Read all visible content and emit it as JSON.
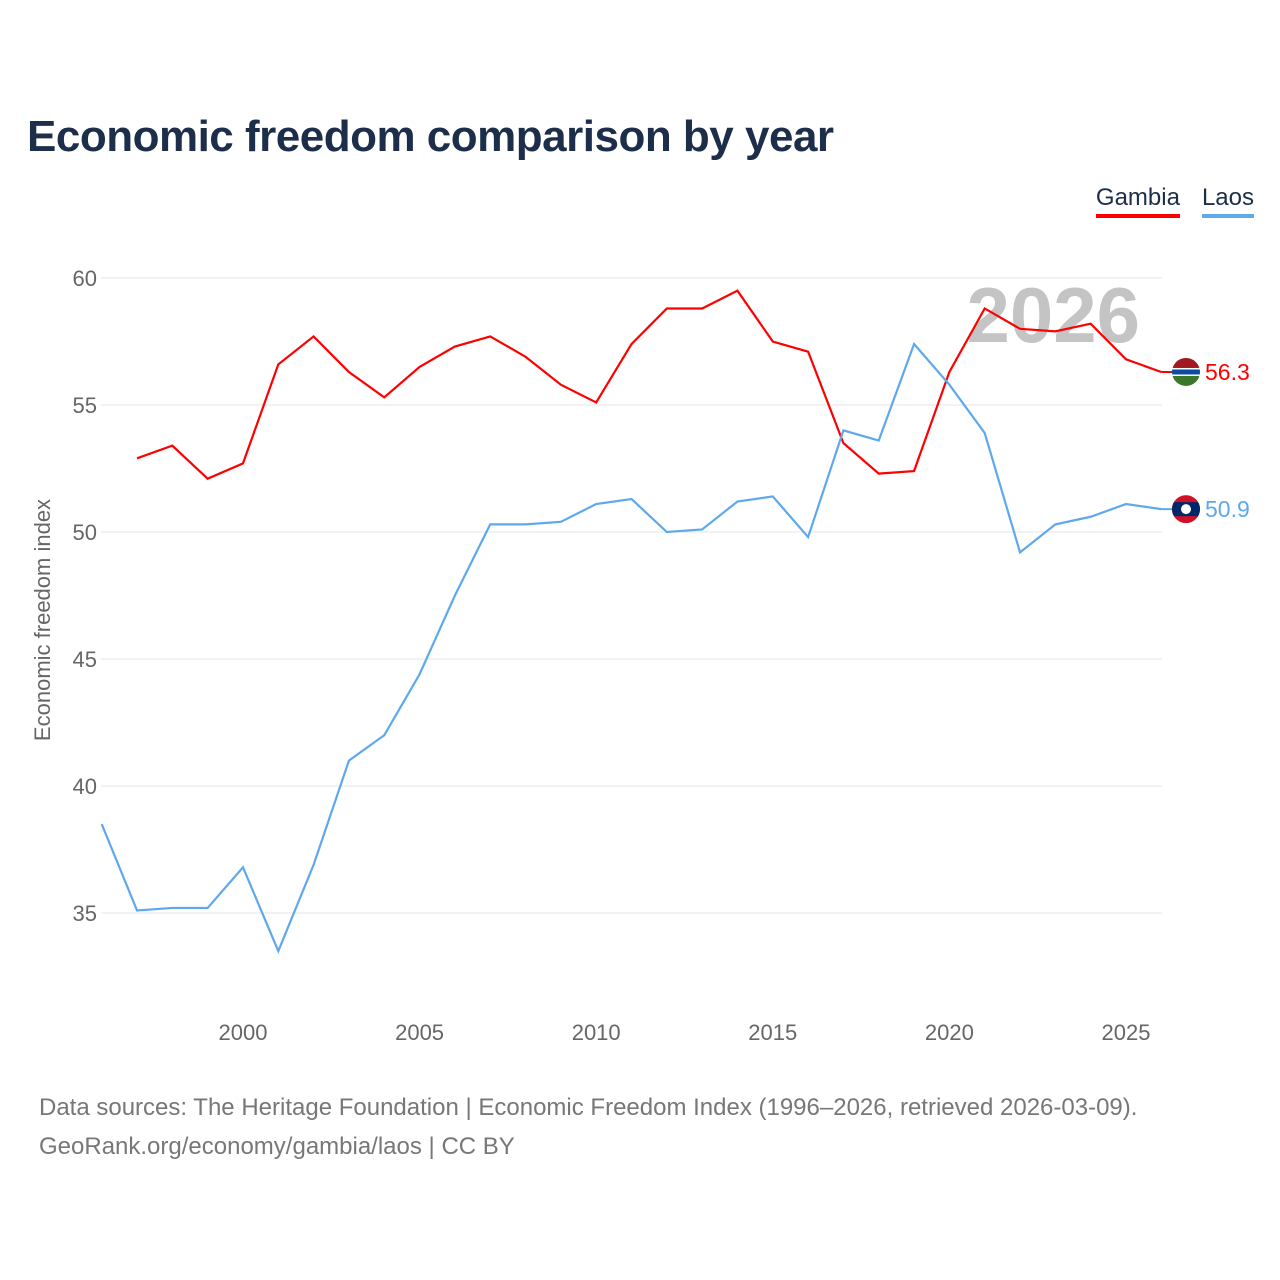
{
  "title": "Economic freedom comparison by year",
  "watermark_year": "2026",
  "source_line1": "Data sources: The Heritage Foundation | Economic Freedom Index (1996–2026, retrieved 2026-03-09).",
  "source_line2": "GeoRank.org/economy/gambia/laos | CC BY",
  "chart_data": {
    "type": "line",
    "title": "Economic freedom comparison by year",
    "xlabel": "",
    "ylabel": "Economic freedom index",
    "xlim": [
      1996,
      2026
    ],
    "ylim": [
      31.2,
      61.5
    ],
    "yticks": [
      35,
      40,
      45,
      50,
      55,
      60
    ],
    "xticks": [
      2000,
      2005,
      2010,
      2015,
      2020,
      2025
    ],
    "grid": true,
    "legend_position": "top-right",
    "series": [
      {
        "name": "Gambia",
        "color": "#ff0000",
        "end_label": "56.3",
        "x": [
          1997,
          1998,
          1999,
          2000,
          2001,
          2002,
          2003,
          2004,
          2005,
          2006,
          2007,
          2008,
          2009,
          2010,
          2011,
          2012,
          2013,
          2014,
          2015,
          2016,
          2017,
          2018,
          2019,
          2020,
          2021,
          2022,
          2023,
          2024,
          2025,
          2026
        ],
        "values": [
          52.9,
          53.4,
          52.1,
          52.7,
          56.6,
          57.7,
          56.3,
          55.3,
          56.5,
          57.3,
          57.7,
          56.9,
          55.8,
          55.1,
          57.4,
          58.8,
          58.8,
          59.5,
          57.5,
          57.1,
          53.5,
          52.3,
          52.4,
          56.3,
          58.8,
          58.0,
          57.9,
          58.2,
          56.8,
          56.3
        ]
      },
      {
        "name": "Laos",
        "color": "#5ea8ee",
        "end_label": "50.9",
        "x": [
          1996,
          1997,
          1998,
          1999,
          2000,
          2001,
          2002,
          2003,
          2004,
          2005,
          2006,
          2007,
          2008,
          2009,
          2010,
          2011,
          2012,
          2013,
          2014,
          2015,
          2016,
          2017,
          2018,
          2019,
          2020,
          2021,
          2022,
          2023,
          2024,
          2025,
          2026
        ],
        "values": [
          38.5,
          35.1,
          35.2,
          35.2,
          36.8,
          33.5,
          36.9,
          41.0,
          42.0,
          44.4,
          47.5,
          50.3,
          50.3,
          50.4,
          51.1,
          51.3,
          50.0,
          50.1,
          51.2,
          51.4,
          49.8,
          54.0,
          53.6,
          57.4,
          55.8,
          53.9,
          49.2,
          50.3,
          50.6,
          51.1,
          50.9
        ]
      }
    ]
  }
}
